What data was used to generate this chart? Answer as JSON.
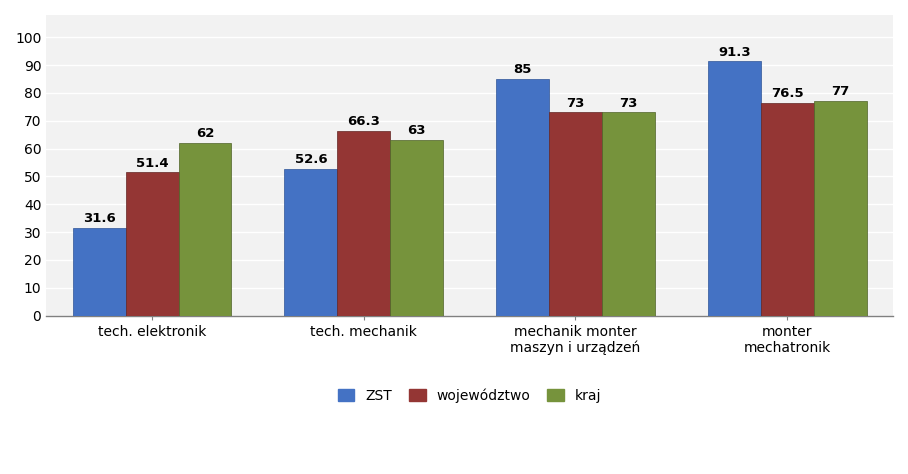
{
  "categories": [
    "tech. elektronik",
    "tech. mechanik",
    "mechanik monter\nmaszyn i urządzeń",
    "monter\nmechatronik"
  ],
  "series": {
    "ZST": [
      31.6,
      52.6,
      85,
      91.3
    ],
    "województwo": [
      51.4,
      66.3,
      73,
      76.5
    ],
    "kraj": [
      62,
      63,
      73,
      77
    ]
  },
  "colors": {
    "ZST": "#4472C4",
    "województwo": "#943634",
    "kraj": "#76933C"
  },
  "colors_dark": {
    "ZST": "#2F5597",
    "województwo": "#632523",
    "kraj": "#4F6228"
  },
  "ylim": [
    0,
    108
  ],
  "yticks": [
    0,
    10,
    20,
    30,
    40,
    50,
    60,
    70,
    80,
    90,
    100
  ],
  "bar_width": 0.25,
  "label_fontsize": 9.5,
  "legend_fontsize": 10,
  "tick_fontsize": 10,
  "background_color": "#FFFFFF",
  "plot_bg_color": "#F2F2F2",
  "grid_color": "#FFFFFF"
}
